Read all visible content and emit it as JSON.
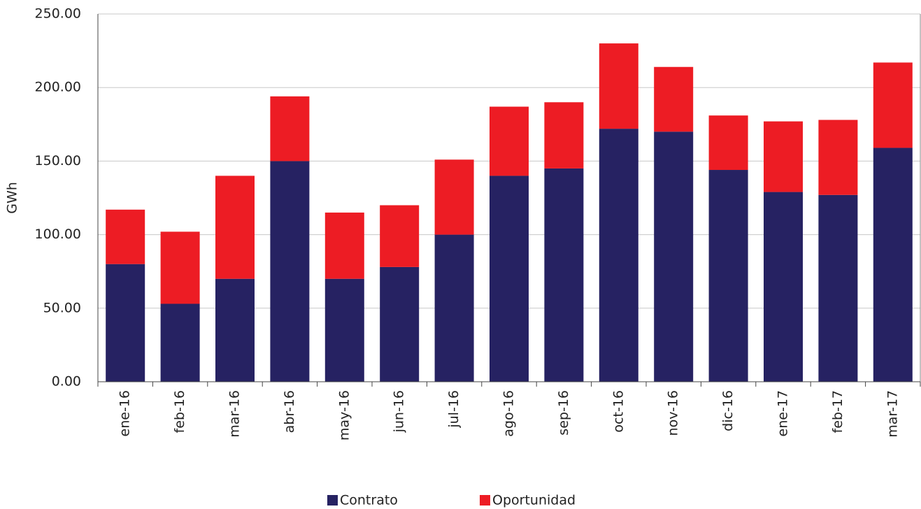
{
  "chart_data": {
    "type": "stacked_bar",
    "y_label": "GWh",
    "categories": [
      "ene-16",
      "feb-16",
      "mar-16",
      "abr-16",
      "may-16",
      "jun-16",
      "jul-16",
      "ago-16",
      "sep-16",
      "oct-16",
      "nov-16",
      "dic-16",
      "ene-17",
      "feb-17",
      "mar-17"
    ],
    "series": [
      {
        "name": "Contrato",
        "color": "#262262",
        "values": [
          80,
          53,
          70,
          150,
          70,
          78,
          100,
          140,
          145,
          172,
          170,
          144,
          129,
          127,
          159
        ]
      },
      {
        "name": "Oportunidad",
        "color": "#ed1c24",
        "values": [
          37,
          49,
          70,
          44,
          45,
          42,
          51,
          47,
          45,
          58,
          44,
          37,
          48,
          51,
          58
        ]
      }
    ],
    "ylim": [
      0,
      250
    ],
    "yticks": [
      {
        "value": 0,
        "label": "0.00"
      },
      {
        "value": 50,
        "label": "50.00"
      },
      {
        "value": 100,
        "label": "100.00"
      },
      {
        "value": 150,
        "label": "150.00"
      },
      {
        "value": 200,
        "label": "200.00"
      },
      {
        "value": 250,
        "label": "250.00"
      }
    ],
    "grid": true,
    "legend": "bottom"
  }
}
